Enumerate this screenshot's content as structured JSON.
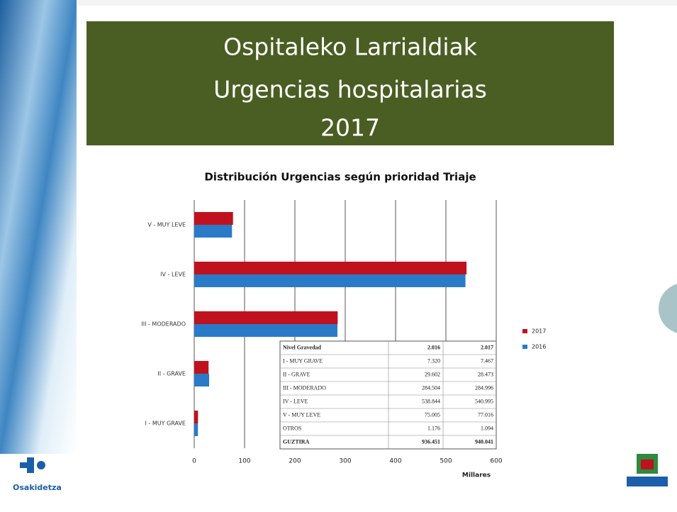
{
  "header": {
    "title_lines": [
      "Ospitaleko Larrialdiak",
      "Urgencias hospitalarias",
      "2017"
    ]
  },
  "chart_data": {
    "type": "hbar",
    "title": "Distribución  Urgencias según prioridad  Triaje",
    "categories": [
      "V - MUY LEVE",
      "IV - LEVE",
      "III - MODERADO",
      "II - GRAVE",
      "I - MUY GRAVE"
    ],
    "series": [
      {
        "name": "2017",
        "color": "#c0121e",
        "values": [
          77.016,
          540.995,
          284.996,
          28.473,
          7.467
        ]
      },
      {
        "name": "2016",
        "color": "#2a7ac8",
        "values": [
          75.005,
          538.844,
          284.504,
          29.602,
          7.32
        ]
      }
    ],
    "xlim": [
      0,
      600
    ],
    "xticks": [
      0,
      100,
      200,
      300,
      400,
      500,
      600
    ],
    "xlabel": "Millares",
    "grid": true,
    "legend": "right"
  },
  "table": {
    "header": [
      "Nivel Gravedad",
      "2.016",
      "2.017"
    ],
    "rows": [
      [
        "I - MUY GRAVE",
        "7.320",
        "7.467"
      ],
      [
        "II - GRAVE",
        "29.602",
        "28.473"
      ],
      [
        "III - MODERADO",
        "284.504",
        "284.996"
      ],
      [
        "IV - LEVE",
        "538.844",
        "540.995"
      ],
      [
        "V - MUY LEVE",
        "75.005",
        "77.016"
      ],
      [
        "OTROS",
        "1.176",
        "1.094"
      ],
      [
        "GUZTIRA",
        "936.451",
        "940.041"
      ]
    ]
  },
  "logo": {
    "text": "Osakidetza"
  }
}
